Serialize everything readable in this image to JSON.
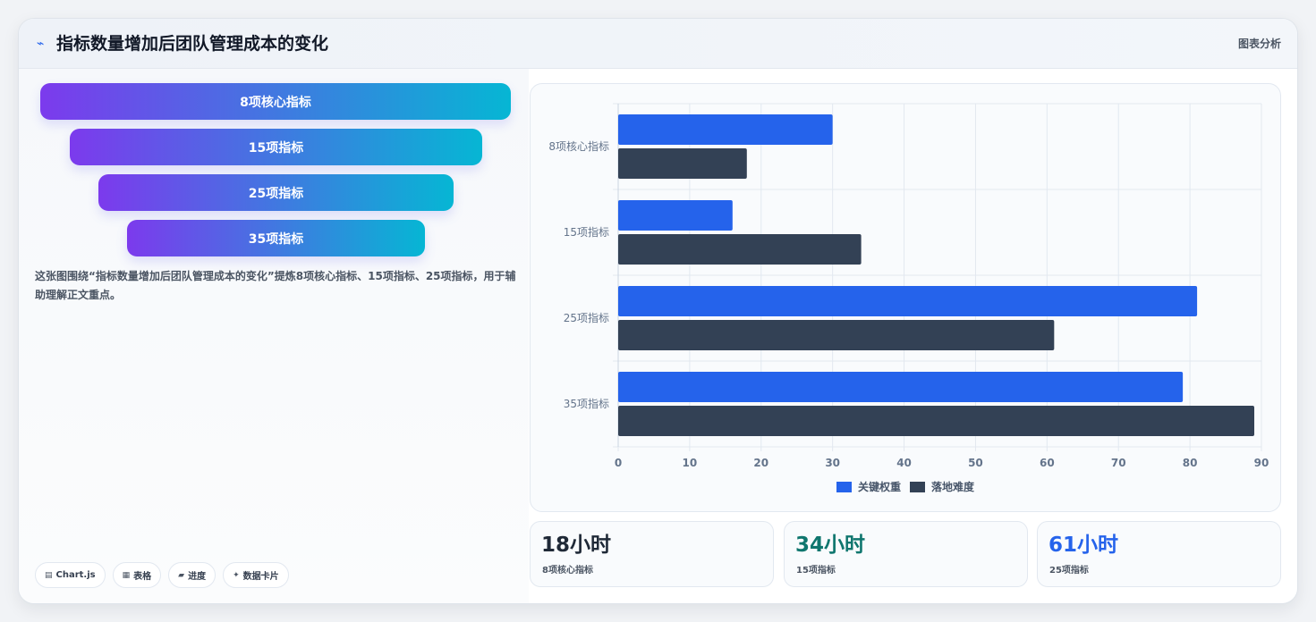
{
  "header": {
    "icon": "line-chart-icon",
    "title": "指标数量增加后团队管理成本的变化",
    "right_label": "图表分析"
  },
  "funnel": {
    "items": [
      {
        "label": "8项核心指标"
      },
      {
        "label": "15项指标"
      },
      {
        "label": "25项指标"
      },
      {
        "label": "35项指标"
      }
    ]
  },
  "description": "这张图围绕“指标数量增加后团队管理成本的变化”提炼8项核心指标、15项指标、25项指标，用于辅助理解正文重点。",
  "chips": [
    {
      "icon": "chart-icon",
      "label": "Chart.js"
    },
    {
      "icon": "table-icon",
      "label": "表格"
    },
    {
      "icon": "progress-icon",
      "label": "进度"
    },
    {
      "icon": "sparkle-icon",
      "label": "数据卡片"
    }
  ],
  "chart_data": {
    "type": "bar",
    "orientation": "horizontal",
    "categories": [
      "8项核心指标",
      "15项指标",
      "25项指标",
      "35项指标"
    ],
    "series": [
      {
        "name": "关键权重",
        "values": [
          30,
          16,
          81,
          79
        ],
        "color": "#2563eb"
      },
      {
        "name": "落地难度",
        "values": [
          18,
          34,
          61,
          89
        ],
        "color": "#334155"
      }
    ],
    "xlim": [
      0,
      90
    ],
    "xticks": [
      0,
      10,
      20,
      30,
      40,
      50,
      60,
      70,
      80,
      90
    ],
    "grid": true,
    "legend_position": "bottom"
  },
  "stats": [
    {
      "value": "18小时",
      "label": "8项核心指标",
      "color": "#1f2937"
    },
    {
      "value": "34小时",
      "label": "15项指标",
      "color": "#0f766e"
    },
    {
      "value": "61小时",
      "label": "25项指标",
      "color": "#2563eb"
    }
  ]
}
